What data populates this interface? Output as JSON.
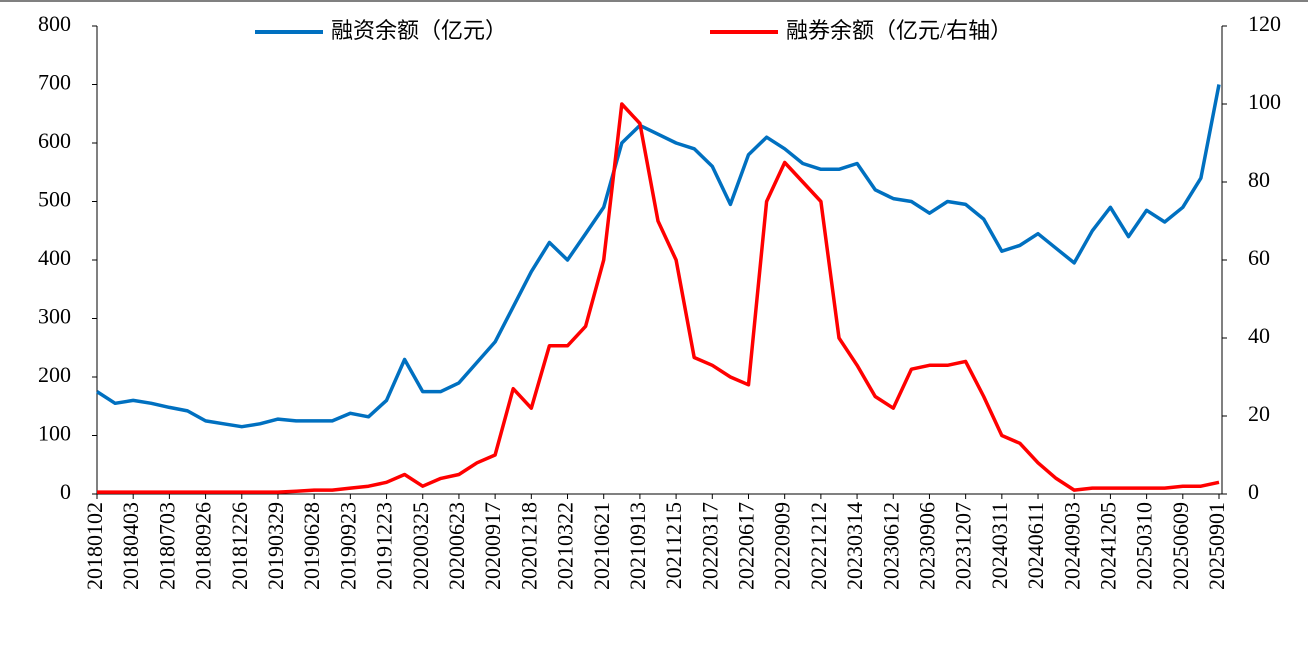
{
  "chart_data": {
    "type": "line",
    "categories": [
      "20180102",
      null,
      "20180403",
      null,
      "20180703",
      null,
      "20180926",
      null,
      "20181226",
      null,
      "20190329",
      null,
      "20190628",
      null,
      "20190923",
      null,
      "20191223",
      null,
      "20200325",
      null,
      "20200623",
      null,
      "20200917",
      null,
      "20201218",
      null,
      "20210322",
      null,
      "20210621",
      null,
      "20210913",
      null,
      "20211215",
      null,
      "20220317",
      null,
      "20220617",
      null,
      "20220909",
      null,
      "20221212",
      null,
      "20230314",
      null,
      "20230612",
      null,
      "20230906",
      null,
      "20231207",
      null,
      "20240311",
      null,
      "20240611",
      null,
      "20240903",
      null,
      "20241205",
      null,
      "20250310",
      null,
      "20250609",
      null,
      "20250901"
    ],
    "series": [
      {
        "name": "融资余额（亿元）",
        "color": "#0070c0",
        "axis": "y",
        "values": [
          175,
          155,
          160,
          155,
          148,
          142,
          125,
          120,
          115,
          120,
          128,
          125,
          125,
          125,
          138,
          132,
          160,
          230,
          175,
          175,
          190,
          225,
          260,
          320,
          380,
          430,
          400,
          445,
          490,
          600,
          630,
          615,
          600,
          590,
          560,
          495,
          580,
          610,
          590,
          565,
          555,
          555,
          565,
          520,
          505,
          500,
          480,
          500,
          495,
          470,
          415,
          425,
          445,
          420,
          395,
          450,
          490,
          440,
          485,
          465,
          490,
          540,
          700
        ]
      },
      {
        "name": "融券余额（亿元/右轴）",
        "color": "#ff0000",
        "axis": "y2",
        "values": [
          0.5,
          0.5,
          0.5,
          0.5,
          0.5,
          0.5,
          0.5,
          0.5,
          0.5,
          0.5,
          0.5,
          0.7,
          1,
          1,
          1.5,
          2,
          3,
          5,
          2,
          4,
          5,
          8,
          10,
          27,
          22,
          38,
          38,
          43,
          60,
          100,
          95,
          70,
          60,
          35,
          33,
          30,
          28,
          75,
          85,
          80,
          75,
          40,
          33,
          25,
          22,
          32,
          33,
          33,
          34,
          25,
          15,
          13,
          8,
          4,
          1,
          1.5,
          1.5,
          1.5,
          1.5,
          1.5,
          2,
          2,
          3
        ]
      }
    ],
    "ylim": [
      0,
      800
    ],
    "yticks": [
      0,
      100,
      200,
      300,
      400,
      500,
      600,
      700,
      800
    ],
    "y2lim": [
      0,
      120
    ],
    "y2ticks": [
      0,
      20,
      40,
      60,
      80,
      100,
      120
    ],
    "legend": "top"
  }
}
